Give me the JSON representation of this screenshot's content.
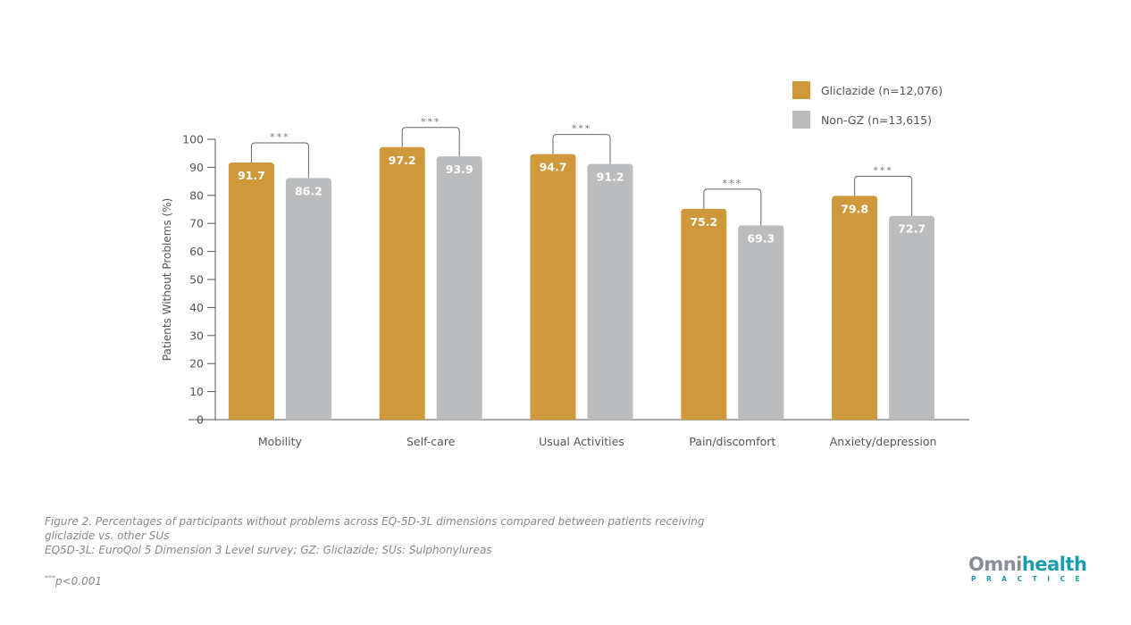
{
  "chart_data": {
    "type": "bar",
    "title": "",
    "xlabel": "",
    "ylabel": "Patients Without Problems (%)",
    "ylim": [
      0,
      100
    ],
    "yticks": [
      0,
      10,
      20,
      30,
      40,
      50,
      60,
      70,
      80,
      90,
      100
    ],
    "categories": [
      "Mobility",
      "Self-care",
      "Usual Activities",
      "Pain/discomfort",
      "Anxiety/depression"
    ],
    "series": [
      {
        "name": "Gliclazide (n=12,076)",
        "color": "#cf983b",
        "values": [
          91.7,
          97.2,
          94.7,
          75.2,
          79.8
        ]
      },
      {
        "name": "Non-GZ (n=13,615)",
        "color": "#bbbcbe",
        "values": [
          86.2,
          93.9,
          91.2,
          69.3,
          72.7
        ]
      }
    ],
    "significance": [
      "***",
      "***",
      "***",
      "***",
      "***"
    ],
    "legend_position": "top-right",
    "grid": false
  },
  "caption": {
    "line1": "Figure 2. Percentages of participants without problems across EQ-5D-3L dimensions compared between patients receiving",
    "line2": "gliclazide vs. other SUs",
    "line3": "EQ5D-3L: EuroQol 5 Dimension 3 Level survey; GZ: Gliclazide; SUs: Sulphonylureas",
    "pvalue_marker": "***",
    "pvalue_text": "p<0.001"
  },
  "logo": {
    "part1": "Omni",
    "part2": "health",
    "sub": "PRACTICE"
  }
}
